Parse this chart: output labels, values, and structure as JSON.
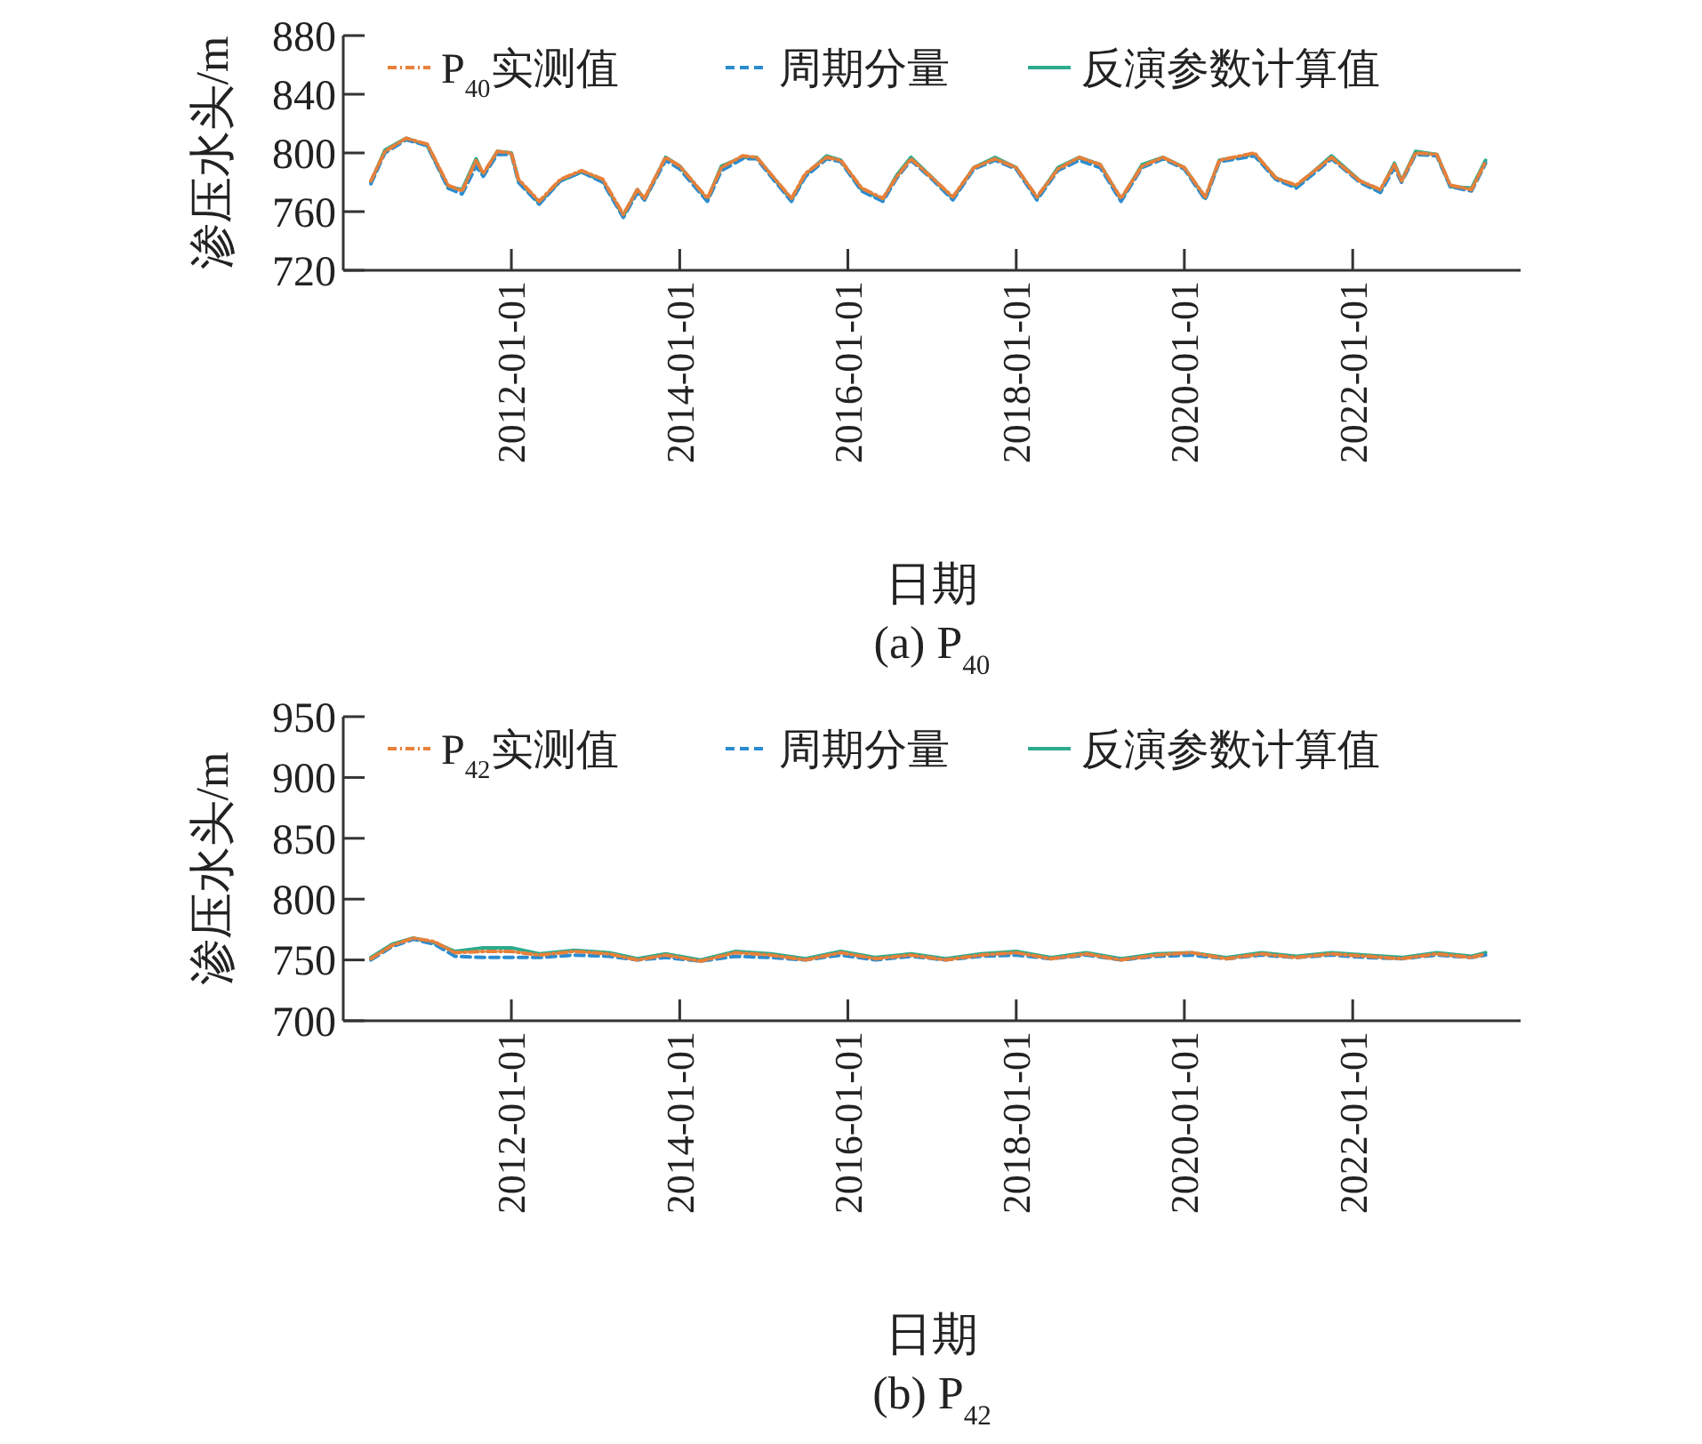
{
  "chart_data": [
    {
      "type": "line",
      "title": "(a) P$_{40}$",
      "xlabel": "日期",
      "ylabel": "渗压水头/m",
      "legend": "top",
      "x": [
        "2010-05",
        "2010-07",
        "2010-10",
        "2011-01",
        "2011-04",
        "2011-06",
        "2011-08",
        "2011-09",
        "2011-11",
        "2012-01",
        "2012-02",
        "2012-05",
        "2012-08",
        "2012-11",
        "2013-02",
        "2013-05",
        "2013-07",
        "2013-08",
        "2013-11",
        "2014-01",
        "2014-05",
        "2014-07",
        "2014-10",
        "2014-12",
        "2015-05",
        "2015-07",
        "2015-10",
        "2015-12",
        "2016-03",
        "2016-06",
        "2016-08",
        "2016-10",
        "2017-01",
        "2017-04",
        "2017-07",
        "2017-10",
        "2018-01",
        "2018-04",
        "2018-07",
        "2018-10",
        "2019-01",
        "2019-04",
        "2019-07",
        "2019-10",
        "2020-01",
        "2020-04",
        "2020-06",
        "2020-11",
        "2021-02",
        "2021-05",
        "2021-10",
        "2022-02",
        "2022-05",
        "2022-07",
        "2022-08",
        "2022-10",
        "2023-01",
        "2023-03",
        "2023-06",
        "2023-08"
      ],
      "xlim": [
        "2010-01-01",
        "2023-12-31"
      ],
      "xticks": [
        "2012-01-01",
        "2014-01-01",
        "2016-01-01",
        "2018-01-01",
        "2020-01-01",
        "2022-01-01"
      ],
      "ylim": [
        720,
        880
      ],
      "yticks": [
        720,
        760,
        800,
        840,
        880
      ],
      "series": [
        {
          "name": "P$_{40}$实测值",
          "color": "#e8803a",
          "line_style": "dashdot",
          "values": [
            781,
            801,
            810,
            806,
            778,
            774,
            795,
            786,
            801,
            800,
            782,
            767,
            782,
            788,
            782,
            758,
            775,
            769,
            797,
            791,
            769,
            790,
            798,
            797,
            769,
            786,
            797,
            795,
            776,
            769,
            784,
            796,
            783,
            770,
            790,
            796,
            790,
            770,
            789,
            797,
            792,
            769,
            791,
            797,
            790,
            770,
            795,
            800,
            783,
            778,
            797,
            781,
            775,
            792,
            781,
            800,
            799,
            778,
            775,
            794
          ]
        },
        {
          "name": "周期分量",
          "color": "#2b8ccf",
          "line_style": "dashed",
          "values": [
            779,
            800,
            809,
            805,
            776,
            772,
            791,
            784,
            799,
            799,
            780,
            765,
            781,
            787,
            780,
            756,
            773,
            768,
            795,
            789,
            767,
            788,
            796,
            796,
            767,
            784,
            796,
            794,
            774,
            767,
            783,
            795,
            782,
            768,
            789,
            795,
            789,
            768,
            788,
            795,
            790,
            767,
            790,
            796,
            789,
            768,
            794,
            798,
            782,
            776,
            796,
            780,
            773,
            790,
            780,
            799,
            798,
            777,
            774,
            793
          ]
        },
        {
          "name": "反演参数计算值",
          "color": "#2bab8c",
          "line_style": "solid",
          "values": [
            780,
            802,
            810,
            805,
            777,
            775,
            796,
            785,
            801,
            800,
            781,
            766,
            781,
            787,
            781,
            757,
            775,
            768,
            797,
            791,
            768,
            791,
            797,
            797,
            768,
            785,
            798,
            795,
            775,
            768,
            785,
            797,
            783,
            769,
            790,
            797,
            790,
            769,
            790,
            797,
            792,
            768,
            792,
            797,
            790,
            769,
            795,
            799,
            783,
            777,
            798,
            781,
            774,
            793,
            781,
            801,
            799,
            777,
            776,
            795
          ]
        }
      ]
    },
    {
      "type": "line",
      "title": "(b) P$_{42}$",
      "xlabel": "日期",
      "ylabel": "渗压水头/m",
      "legend": "top",
      "x": [
        "2010-05",
        "2010-08",
        "2010-11",
        "2011-02",
        "2011-05",
        "2011-09",
        "2012-01",
        "2012-05",
        "2012-10",
        "2013-03",
        "2013-07",
        "2013-11",
        "2014-04",
        "2014-09",
        "2015-02",
        "2015-07",
        "2015-12",
        "2016-05",
        "2016-10",
        "2017-03",
        "2017-08",
        "2018-01",
        "2018-06",
        "2018-11",
        "2019-04",
        "2019-09",
        "2020-02",
        "2020-07",
        "2020-12",
        "2021-05",
        "2021-10",
        "2022-03",
        "2022-08",
        "2023-01",
        "2023-06",
        "2023-08"
      ],
      "xlim": [
        "2010-01-01",
        "2023-12-31"
      ],
      "xticks": [
        "2012-01-01",
        "2014-01-01",
        "2016-01-01",
        "2018-01-01",
        "2020-01-01",
        "2022-01-01"
      ],
      "ylim": [
        700,
        950
      ],
      "yticks": [
        700,
        750,
        800,
        850,
        900,
        950
      ],
      "series": [
        {
          "name": "P$_{42}$实测值",
          "color": "#e8803a",
          "line_style": "dashdot",
          "values": [
            751,
            762,
            768,
            765,
            756,
            757,
            757,
            754,
            757,
            755,
            750,
            754,
            749,
            756,
            754,
            750,
            756,
            751,
            754,
            750,
            754,
            756,
            751,
            755,
            750,
            754,
            756,
            751,
            755,
            752,
            755,
            753,
            751,
            755,
            752,
            755
          ]
        },
        {
          "name": "周期分量",
          "color": "#2b8ccf",
          "line_style": "dashed",
          "values": [
            750,
            761,
            767,
            763,
            753,
            752,
            752,
            752,
            754,
            753,
            750,
            752,
            749,
            753,
            752,
            750,
            754,
            750,
            753,
            750,
            753,
            754,
            751,
            754,
            750,
            753,
            754,
            751,
            754,
            752,
            754,
            752,
            751,
            754,
            752,
            754
          ]
        },
        {
          "name": "反演参数计算值",
          "color": "#2bab8c",
          "line_style": "solid",
          "values": [
            752,
            763,
            768,
            764,
            757,
            760,
            760,
            755,
            758,
            756,
            751,
            755,
            750,
            757,
            755,
            751,
            757,
            752,
            755,
            751,
            755,
            757,
            752,
            756,
            751,
            755,
            756,
            752,
            756,
            753,
            756,
            754,
            752,
            756,
            753,
            756
          ]
        }
      ]
    }
  ]
}
